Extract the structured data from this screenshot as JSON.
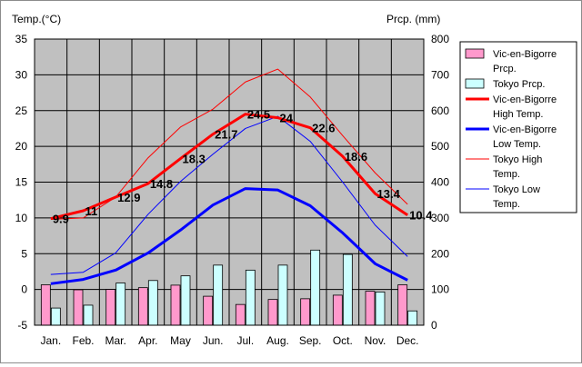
{
  "chart_data": {
    "type": "line",
    "left_axis_title": "Temp.(°C)",
    "right_axis_title": "Prcp. (mm)",
    "categories": [
      "Jan.",
      "Feb.",
      "Mar.",
      "Apr.",
      "May",
      "Jun.",
      "Jul.",
      "Aug.",
      "Sep.",
      "Oct.",
      "Nov.",
      "Dec."
    ],
    "left_axis": {
      "min": -5,
      "max": 35,
      "step": 5,
      "ticks": [
        "35",
        "30",
        "25",
        "20",
        "15",
        "10",
        "5",
        "0",
        "-5"
      ]
    },
    "right_axis": {
      "min": 0,
      "max": 800,
      "step": 100,
      "ticks": [
        "800",
        "700",
        "600",
        "500",
        "400",
        "300",
        "200",
        "100",
        "0"
      ]
    },
    "grid": true,
    "plot_background": "#c0c0c0",
    "legend_position": "right",
    "series": [
      {
        "name": "Vic-en-Bigorre Prcp.",
        "kind": "bar",
        "axis": "right",
        "color": "#ff99cc",
        "values": [
          113,
          99,
          100,
          105,
          112,
          81,
          58,
          72,
          74,
          84,
          95,
          113
        ]
      },
      {
        "name": "Tokyo Prcp.",
        "kind": "bar",
        "axis": "right",
        "color": "#ccffff",
        "values": [
          48,
          56,
          118,
          125,
          138,
          168,
          154,
          168,
          210,
          198,
          93,
          40
        ]
      },
      {
        "name": "Vic-en-Bigorre High Temp.",
        "kind": "line",
        "axis": "left",
        "color": "#ff0000",
        "width": 3,
        "values": [
          9.9,
          11,
          12.9,
          14.8,
          18.3,
          21.7,
          24.5,
          24,
          22.6,
          18.6,
          13.4,
          10.4
        ]
      },
      {
        "name": "Vic-en-Bigorre Low Temp.",
        "kind": "line",
        "axis": "left",
        "color": "#0000ff",
        "width": 3,
        "values": [
          0.8,
          1.4,
          2.7,
          5.1,
          8.3,
          11.8,
          14.1,
          13.9,
          11.7,
          7.9,
          3.6,
          1.3
        ]
      },
      {
        "name": "Tokyo High Temp.",
        "kind": "line",
        "axis": "left",
        "color": "#ff0000",
        "width": 1,
        "values": [
          9.8,
          10.0,
          12.9,
          18.4,
          22.7,
          25.2,
          29.0,
          30.8,
          26.9,
          21.5,
          16.3,
          11.9
        ]
      },
      {
        "name": "Tokyo Low Temp.",
        "kind": "line",
        "axis": "left",
        "color": "#0000ff",
        "width": 1,
        "values": [
          2.1,
          2.4,
          5.1,
          10.5,
          15.1,
          18.9,
          22.5,
          24.2,
          20.7,
          15.0,
          9.0,
          4.6
        ]
      }
    ],
    "data_labels": {
      "series": "Vic-en-Bigorre High Temp.",
      "labels": [
        "9.9",
        "11",
        "12.9",
        "14.8",
        "18.3",
        "21.7",
        "24.5",
        "24",
        "22.6",
        "18.6",
        "13.4",
        "10.4"
      ]
    },
    "legend": [
      {
        "kind": "bar",
        "color": "#ff99cc",
        "lines": [
          "Vic-en-Bigorre",
          "Prcp."
        ]
      },
      {
        "kind": "bar",
        "color": "#ccffff",
        "lines": [
          "Tokyo Prcp."
        ]
      },
      {
        "kind": "line",
        "color": "#ff0000",
        "width": 3,
        "lines": [
          "Vic-en-Bigorre",
          "High Temp."
        ]
      },
      {
        "kind": "line",
        "color": "#0000ff",
        "width": 3,
        "lines": [
          "Vic-en-Bigorre",
          "Low Temp."
        ]
      },
      {
        "kind": "line",
        "color": "#ff0000",
        "width": 1,
        "lines": [
          "Tokyo High",
          "Temp."
        ]
      },
      {
        "kind": "line",
        "color": "#0000ff",
        "width": 1,
        "lines": [
          "Tokyo Low",
          "Temp."
        ]
      }
    ]
  }
}
